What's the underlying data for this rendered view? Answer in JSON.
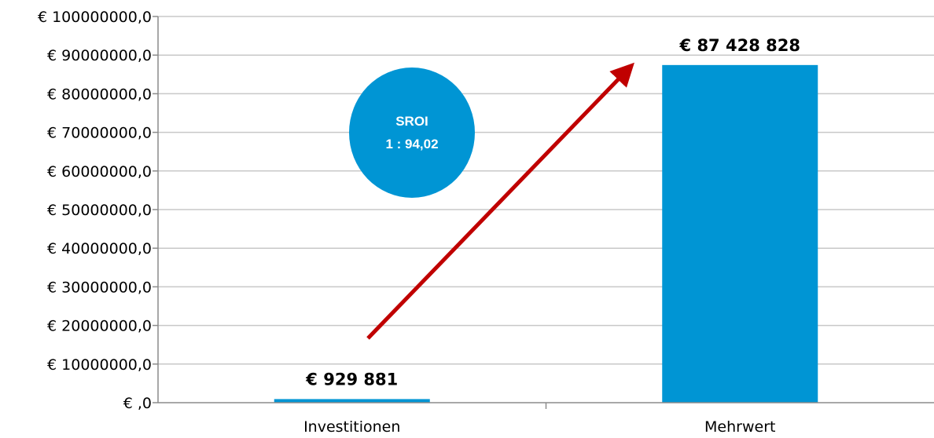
{
  "chart_data": {
    "type": "bar",
    "categories": [
      "Investitionen",
      "Mehrwert"
    ],
    "values": [
      929881,
      87428828
    ],
    "data_labels": [
      "€ 929 881",
      "€ 87 428 828"
    ],
    "ylim": [
      0,
      100000000
    ],
    "yticks": [
      0,
      10000000,
      20000000,
      30000000,
      40000000,
      50000000,
      60000000,
      70000000,
      80000000,
      90000000,
      100000000
    ],
    "ytick_labels": [
      "€ ,0",
      "€ 10000000,0",
      "€ 20000000,0",
      "€ 30000000,0",
      "€ 40000000,0",
      "€ 50000000,0",
      "€ 60000000,0",
      "€ 70000000,0",
      "€ 80000000,0",
      "€ 90000000,0",
      "€ 100000000,0"
    ],
    "grid": true,
    "bar_color": "#0095d4",
    "annotation": {
      "title": "SROI",
      "ratio": "1 : 94,02",
      "color": "#0095d4"
    },
    "arrow_color": "#c00000"
  }
}
